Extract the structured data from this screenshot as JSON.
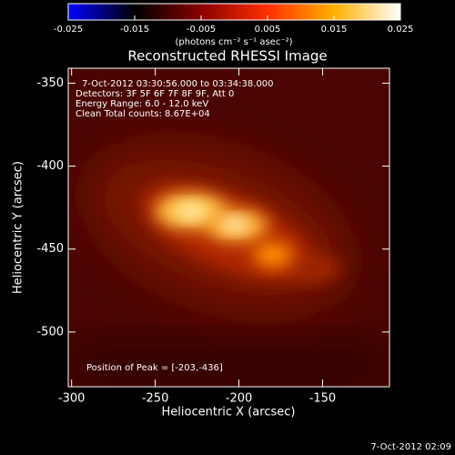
{
  "chart_data": {
    "type": "image",
    "title": "Reconstructed RHESSI Image",
    "x_label": "Heliocentric X (arcsec)",
    "y_label": "Heliocentric Y (arcsec)",
    "xlim": [
      -302,
      -110
    ],
    "xticks": [
      -300,
      -250,
      -200,
      -150
    ],
    "ylim": [
      -533,
      -341
    ],
    "yticks": [
      -500,
      -450,
      -400,
      -350
    ],
    "colorbar": {
      "label": "(photons cm⁻² s⁻¹ asec⁻²)",
      "lim": [
        -0.025,
        0.025
      ],
      "ticks": [
        -0.025,
        -0.015,
        -0.005,
        0.005,
        0.015,
        0.025
      ],
      "colors": [
        "#0000ff",
        "#000000",
        "#8a0000",
        "#ff3000",
        "#ffb000",
        "#ffffff"
      ]
    },
    "annotations": [
      "7-Oct-2012 03:30:56.000 to 03:34:38.000",
      "Detectors: 3F 5F 6F 7F 8F 9F, Att 0",
      "Energy Range: 6.0 - 12.0 keV",
      "Clean    Total counts: 8.67E+04"
    ],
    "peak_note": "Position of Peak = [-203,-436]",
    "timestamp": "7-Oct-2012 02:09"
  }
}
